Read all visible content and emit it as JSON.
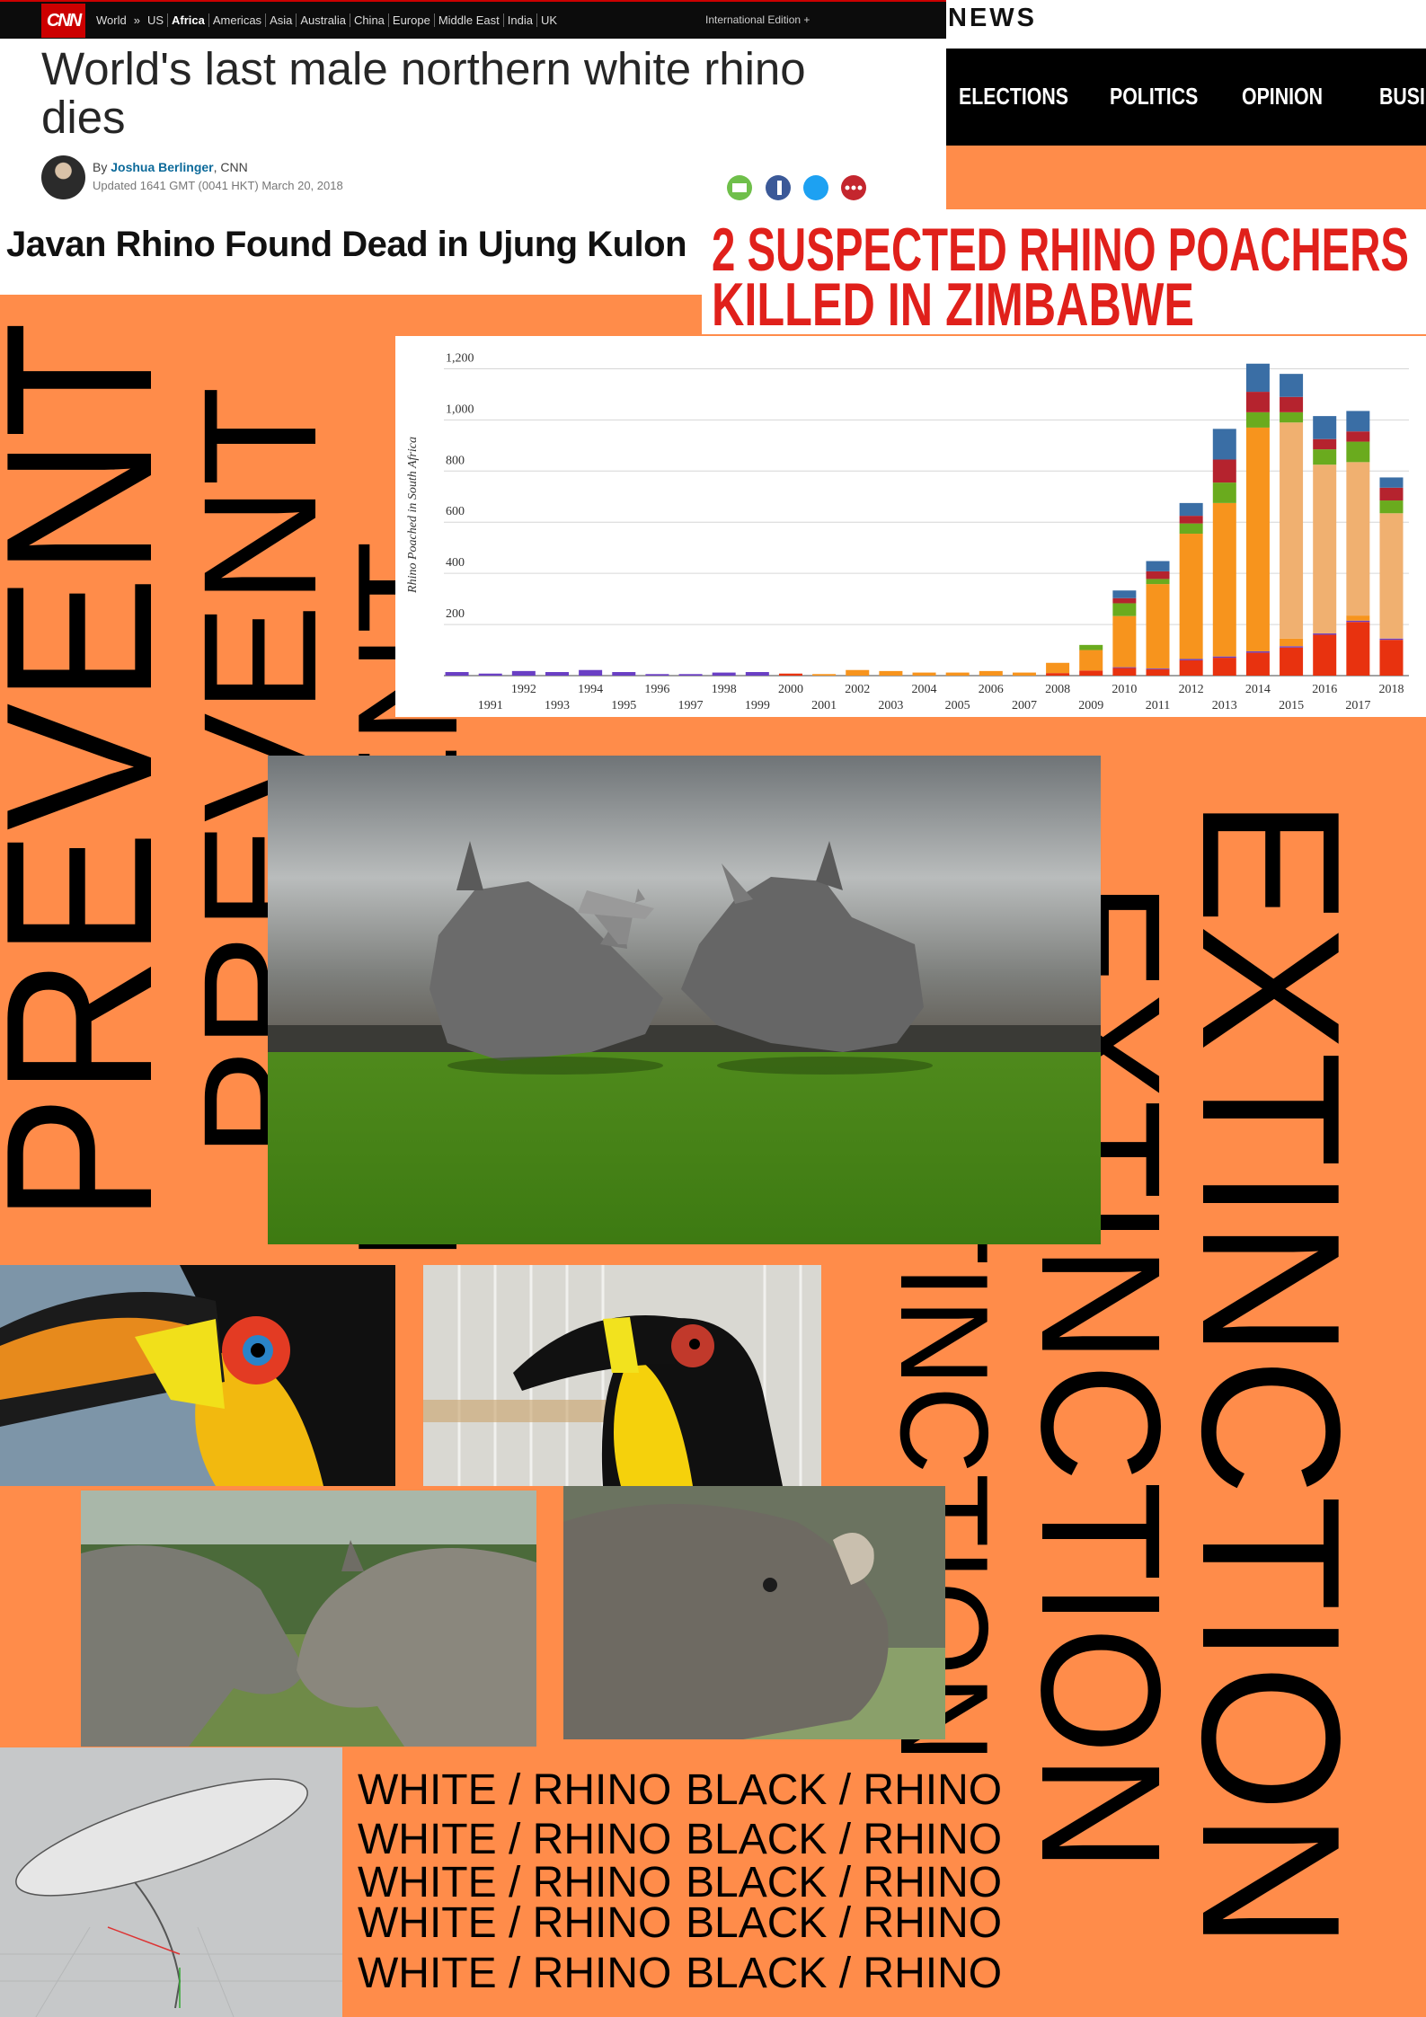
{
  "cnn_header": {
    "logo": "CNN",
    "nav": [
      "World",
      "»",
      "US",
      "Africa",
      "Americas",
      "Asia",
      "Australia",
      "China",
      "Europe",
      "Middle East",
      "India",
      "UK"
    ],
    "edition": "International Edition +",
    "headline": "World's last male northern white rhino dies",
    "byline": [
      "By ",
      "Joshua Berlinger",
      ", CNN"
    ],
    "updated": "Updated 1641 GMT (0041 HKT) March 20, 2018"
  },
  "news_header": {
    "brand": "NEWS",
    "nav": [
      "ELECTIONS",
      "POLITICS",
      "OPINION",
      "BUSI"
    ]
  },
  "javan_headline": "Javan Rhino Found Dead in Ujung Kulon",
  "zimbabwe_headline": [
    "2 SUSPECTED RHINO POACHERS",
    "KILLED IN ZIMBABWE"
  ],
  "chart_data": {
    "type": "bar",
    "stacked": true,
    "y_label": "Rhino Poached in South Africa",
    "categories": [
      null,
      "1991",
      "1992",
      "1993",
      "1994",
      "1995",
      "1996",
      "1997",
      "1998",
      "1999",
      "2000",
      "2001",
      "2002",
      "2003",
      "2004",
      "2005",
      "2006",
      "2007",
      "2008",
      "2009",
      "2010",
      "2011",
      "2012",
      "2013",
      "2014",
      "2015",
      "2016",
      "2017",
      "2018"
    ],
    "series": [
      {
        "color": "#e8320f",
        "values": [
          0,
          0,
          0,
          0,
          0,
          0,
          0,
          0,
          0,
          0,
          8,
          0,
          0,
          0,
          0,
          0,
          0,
          0,
          10,
          20,
          30,
          25,
          60,
          70,
          90,
          110,
          160,
          210,
          140
        ]
      },
      {
        "color": "#6a3fc4",
        "values": [
          14,
          8,
          18,
          14,
          22,
          14,
          6,
          6,
          12,
          14,
          0,
          0,
          0,
          0,
          0,
          0,
          0,
          0,
          0,
          0,
          3,
          3,
          5,
          5,
          5,
          5,
          5,
          5,
          5
        ]
      },
      {
        "color": "#f7941d",
        "values": [
          0,
          0,
          0,
          0,
          0,
          0,
          0,
          0,
          0,
          0,
          0,
          6,
          22,
          18,
          12,
          12,
          18,
          12,
          40,
          80,
          200,
          330,
          490,
          600,
          875,
          30,
          0,
          20,
          0
        ]
      },
      {
        "color": "#f0b070",
        "values": [
          0,
          0,
          0,
          0,
          0,
          0,
          0,
          0,
          0,
          0,
          0,
          0,
          0,
          0,
          0,
          0,
          0,
          0,
          0,
          0,
          0,
          0,
          0,
          0,
          0,
          845,
          660,
          600,
          490
        ]
      },
      {
        "color": "#6aab1e",
        "values": [
          0,
          0,
          0,
          0,
          0,
          0,
          0,
          0,
          0,
          0,
          0,
          0,
          0,
          0,
          0,
          0,
          0,
          0,
          0,
          20,
          50,
          20,
          40,
          80,
          60,
          40,
          60,
          80,
          50
        ]
      },
      {
        "color": "#b5232e",
        "values": [
          0,
          0,
          0,
          0,
          0,
          0,
          0,
          0,
          0,
          0,
          0,
          0,
          0,
          0,
          0,
          0,
          0,
          0,
          0,
          0,
          20,
          30,
          30,
          90,
          80,
          60,
          40,
          40,
          50
        ]
      },
      {
        "color": "#3a6ea5",
        "values": [
          0,
          0,
          0,
          0,
          0,
          0,
          0,
          0,
          0,
          0,
          0,
          0,
          0,
          0,
          0,
          0,
          0,
          0,
          0,
          0,
          30,
          40,
          50,
          120,
          110,
          90,
          90,
          80,
          40
        ]
      }
    ],
    "ylim": [
      0,
      1300
    ],
    "yticks": [
      200,
      400,
      600,
      800,
      {
        "value": 1000,
        "label": "1,000"
      },
      {
        "value": 1200,
        "label": "1,200"
      }
    ],
    "grid": true
  },
  "poster": {
    "prevent": [
      "PREVENT",
      "PREVENT",
      "PREVENT"
    ],
    "extinction": [
      "EXTINCTION",
      "EXTINCTION",
      "EXTINCTION"
    ],
    "rows": [
      [
        "WHITE / RHINO",
        "BLACK / RHINO"
      ],
      [
        "WHITE / RHINO",
        "BLACK / RHINO"
      ],
      [
        "WHITE / RHINO",
        "BLACK / RHINO"
      ],
      [
        "WHITE / RHINO",
        "BLACK / RHINO"
      ],
      [
        "WHITE / RHINO",
        "BLACK / RHINO"
      ]
    ]
  }
}
